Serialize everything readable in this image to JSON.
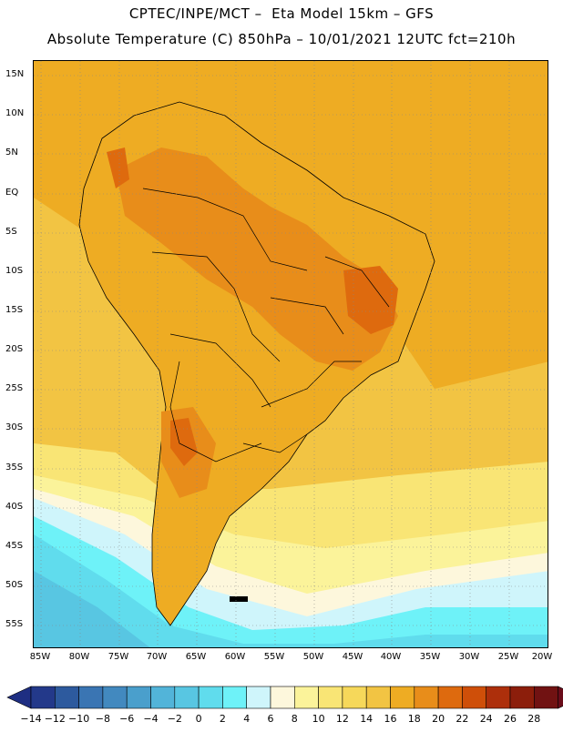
{
  "header": {
    "line1": "CPTEC/INPE/MCT –  Eta Model 15km – GFS",
    "line2": "Absolute Temperature (C) 850hPa – 10/01/2021 12UTC fct=210h"
  },
  "map": {
    "lat_labels": [
      "15N",
      "10N",
      "5N",
      "EQ",
      "5S",
      "10S",
      "15S",
      "20S",
      "25S",
      "30S",
      "35S",
      "40S",
      "45S",
      "50S",
      "55S"
    ],
    "lon_labels": [
      "85W",
      "80W",
      "75W",
      "70W",
      "65W",
      "60W",
      "55W",
      "50W",
      "45W",
      "40W",
      "35W",
      "30W",
      "25W",
      "20W"
    ]
  },
  "colorbar": {
    "labels": [
      "-14",
      "-12",
      "-10",
      "-8",
      "-6",
      "-4",
      "-2",
      "0",
      "2",
      "4",
      "6",
      "8",
      "10",
      "12",
      "14",
      "16",
      "18",
      "20",
      "22",
      "24",
      "26",
      "28"
    ],
    "colors": [
      "#23398a",
      "#2d5a9e",
      "#3a75b3",
      "#4289bf",
      "#4a9fcc",
      "#52b4d9",
      "#58c6e2",
      "#60dced",
      "#6ef2f8",
      "#cff5fb",
      "#fdf7dc",
      "#fbf39a",
      "#f9e575",
      "#f6d85a",
      "#f2c443",
      "#eeac23",
      "#e88d1a",
      "#de6a0e",
      "#cf4f09",
      "#ad2f0b",
      "#8c1e0b",
      "#711212"
    ],
    "end_low": "#1e2e82",
    "end_high": "#6a0c1a"
  }
}
